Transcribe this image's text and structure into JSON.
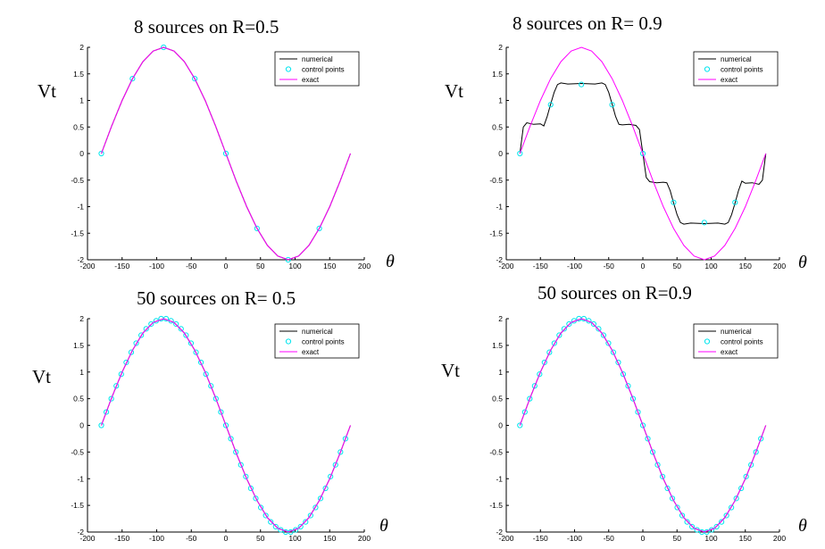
{
  "chart_data": [
    {
      "type": "line",
      "title": "8 sources on R=0.5",
      "ylabel": "Vt",
      "xlabel": "θ",
      "xlim": [
        -200,
        200
      ],
      "ylim": [
        -2,
        2
      ],
      "xticks": [
        "-200",
        "-150",
        "-100",
        "-50",
        "0",
        "50",
        "100",
        "150",
        "200"
      ],
      "yticks": [
        "2",
        "1.5",
        "1",
        "0.5",
        "0",
        "-0.5",
        "-1",
        "-1.5",
        "-2"
      ],
      "legend_position": "top-right",
      "legend": [
        "numerical",
        "control points",
        "exact"
      ],
      "series": [
        {
          "name": "numerical",
          "color": "#000000",
          "x": [
            -180,
            -165,
            -150,
            -135,
            -120,
            -105,
            -90,
            -75,
            -60,
            -45,
            -30,
            -15,
            0,
            15,
            30,
            45,
            60,
            75,
            90,
            105,
            120,
            135,
            150,
            165,
            180
          ],
          "y": [
            0,
            0.52,
            1.0,
            1.41,
            1.73,
            1.93,
            2.0,
            1.93,
            1.73,
            1.41,
            1.0,
            0.52,
            0,
            -0.52,
            -1.0,
            -1.41,
            -1.73,
            -1.93,
            -2.0,
            -1.93,
            -1.73,
            -1.41,
            -1.0,
            -0.52,
            0
          ]
        },
        {
          "name": "control points",
          "color": "#00e5ee",
          "x": [
            -180,
            -135,
            -90,
            -45,
            0,
            45,
            90,
            135
          ],
          "y": [
            0,
            1.41,
            2.0,
            1.41,
            0,
            -1.41,
            -2.0,
            -1.41
          ]
        },
        {
          "name": "exact",
          "color": "#ff00ff",
          "x": [
            -180,
            -165,
            -150,
            -135,
            -120,
            -105,
            -90,
            -75,
            -60,
            -45,
            -30,
            -15,
            0,
            15,
            30,
            45,
            60,
            75,
            90,
            105,
            120,
            135,
            150,
            165,
            180
          ],
          "y": [
            0,
            0.52,
            1.0,
            1.41,
            1.73,
            1.93,
            2.0,
            1.93,
            1.73,
            1.41,
            1.0,
            0.52,
            0,
            -0.52,
            -1.0,
            -1.41,
            -1.73,
            -1.93,
            -2.0,
            -1.93,
            -1.73,
            -1.41,
            -1.0,
            -0.52,
            0
          ]
        }
      ]
    },
    {
      "type": "line",
      "title": "8 sources on R= 0.9",
      "ylabel": "Vt",
      "xlabel": "θ",
      "xlim": [
        -200,
        200
      ],
      "ylim": [
        -2,
        2
      ],
      "xticks": [
        "-200",
        "-150",
        "-100",
        "-50",
        "0",
        "50",
        "100",
        "150",
        "200"
      ],
      "yticks": [
        "2",
        "1.5",
        "1",
        "0.5",
        "0",
        "-0.5",
        "-1",
        "-1.5",
        "-2"
      ],
      "legend_position": "top-right",
      "legend": [
        "numerical",
        "control points",
        "exact"
      ],
      "series": [
        {
          "name": "numerical",
          "color": "#000000",
          "x": [
            -180,
            -175,
            -170,
            -160,
            -150,
            -145,
            -140,
            -135,
            -130,
            -125,
            -120,
            -110,
            -90,
            -70,
            -60,
            -55,
            -50,
            -45,
            -40,
            -35,
            -30,
            -20,
            -10,
            -5,
            0,
            5,
            10,
            20,
            30,
            35,
            40,
            45,
            50,
            55,
            60,
            70,
            90,
            110,
            120,
            125,
            130,
            135,
            140,
            145,
            150,
            160,
            170,
            175,
            180
          ],
          "y": [
            0,
            0.5,
            0.58,
            0.55,
            0.56,
            0.52,
            0.7,
            0.93,
            1.15,
            1.3,
            1.33,
            1.31,
            1.32,
            1.31,
            1.33,
            1.3,
            1.15,
            0.93,
            0.7,
            0.55,
            0.54,
            0.55,
            0.53,
            0.45,
            0,
            -0.45,
            -0.53,
            -0.55,
            -0.54,
            -0.55,
            -0.7,
            -0.93,
            -1.15,
            -1.3,
            -1.33,
            -1.31,
            -1.32,
            -1.31,
            -1.33,
            -1.3,
            -1.15,
            -0.93,
            -0.7,
            -0.52,
            -0.56,
            -0.55,
            -0.58,
            -0.5,
            0
          ]
        },
        {
          "name": "control points",
          "color": "#00e5ee",
          "x": [
            -180,
            -135,
            -90,
            -45,
            0,
            45,
            90,
            135
          ],
          "y": [
            0,
            0.92,
            1.3,
            0.92,
            0,
            -0.92,
            -1.3,
            -0.92
          ]
        },
        {
          "name": "exact",
          "color": "#ff00ff",
          "x": [
            -180,
            -165,
            -150,
            -135,
            -120,
            -105,
            -90,
            -75,
            -60,
            -45,
            -30,
            -15,
            0,
            15,
            30,
            45,
            60,
            75,
            90,
            105,
            120,
            135,
            150,
            165,
            180
          ],
          "y": [
            0,
            0.52,
            1.0,
            1.41,
            1.73,
            1.93,
            2.0,
            1.93,
            1.73,
            1.41,
            1.0,
            0.52,
            0,
            -0.52,
            -1.0,
            -1.41,
            -1.73,
            -1.93,
            -2.0,
            -1.93,
            -1.73,
            -1.41,
            -1.0,
            -0.52,
            0
          ]
        }
      ]
    },
    {
      "type": "line",
      "title": "50 sources on R= 0.5",
      "ylabel": "Vt",
      "xlabel": "θ",
      "xlim": [
        -200,
        200
      ],
      "ylim": [
        -2,
        2
      ],
      "xticks": [
        "-200",
        "-150",
        "-100",
        "-50",
        "0",
        "50",
        "100",
        "150",
        "200"
      ],
      "yticks": [
        "2",
        "1.5",
        "1",
        "0.5",
        "0",
        "-0.5",
        "-1",
        "-1.5",
        "-2"
      ],
      "legend_position": "top-right",
      "legend": [
        "numerical",
        "control points",
        "exact"
      ],
      "series": [
        {
          "name": "numerical",
          "color": "#000000",
          "x": [
            -180,
            -165,
            -150,
            -135,
            -120,
            -105,
            -90,
            -75,
            -60,
            -45,
            -30,
            -15,
            0,
            15,
            30,
            45,
            60,
            75,
            90,
            105,
            120,
            135,
            150,
            165,
            180
          ],
          "y": [
            0,
            0.52,
            1.0,
            1.41,
            1.73,
            1.93,
            2.0,
            1.93,
            1.73,
            1.41,
            1.0,
            0.52,
            0,
            -0.52,
            -1.0,
            -1.41,
            -1.73,
            -1.93,
            -2.0,
            -1.93,
            -1.73,
            -1.41,
            -1.0,
            -0.52,
            0
          ]
        },
        {
          "name": "control points",
          "color": "#00e5ee",
          "x": [
            -180,
            -172.8,
            -165.6,
            -158.4,
            -151.2,
            -144,
            -136.8,
            -129.6,
            -122.4,
            -115.2,
            -108,
            -100.8,
            -93.6,
            -86.4,
            -79.2,
            -72,
            -64.8,
            -57.6,
            -50.4,
            -43.2,
            -36,
            -28.8,
            -21.6,
            -14.4,
            -7.2,
            0,
            7.2,
            14.4,
            21.6,
            28.8,
            36,
            43.2,
            50.4,
            57.6,
            64.8,
            72,
            79.2,
            86.4,
            93.6,
            100.8,
            108,
            115.2,
            122.4,
            129.6,
            136.8,
            144,
            151.2,
            158.4,
            165.6,
            172.8
          ],
          "y": [
            0,
            0.25,
            0.5,
            0.74,
            0.96,
            1.18,
            1.37,
            1.54,
            1.69,
            1.81,
            1.9,
            1.96,
            2.0,
            2.0,
            1.96,
            1.9,
            1.81,
            1.69,
            1.54,
            1.37,
            1.18,
            0.96,
            0.74,
            0.5,
            0.25,
            0,
            -0.25,
            -0.5,
            -0.74,
            -0.96,
            -1.18,
            -1.37,
            -1.54,
            -1.69,
            -1.81,
            -1.9,
            -1.96,
            -2.0,
            -2.0,
            -1.96,
            -1.9,
            -1.81,
            -1.69,
            -1.54,
            -1.37,
            -1.18,
            -0.96,
            -0.74,
            -0.5,
            -0.25
          ]
        },
        {
          "name": "exact",
          "color": "#ff00ff",
          "x": [
            -180,
            -165,
            -150,
            -135,
            -120,
            -105,
            -90,
            -75,
            -60,
            -45,
            -30,
            -15,
            0,
            15,
            30,
            45,
            60,
            75,
            90,
            105,
            120,
            135,
            150,
            165,
            180
          ],
          "y": [
            0,
            0.52,
            1.0,
            1.41,
            1.73,
            1.93,
            2.0,
            1.93,
            1.73,
            1.41,
            1.0,
            0.52,
            0,
            -0.52,
            -1.0,
            -1.41,
            -1.73,
            -1.93,
            -2.0,
            -1.93,
            -1.73,
            -1.41,
            -1.0,
            -0.52,
            0
          ]
        }
      ]
    },
    {
      "type": "line",
      "title": "50 sources on R=0.9",
      "ylabel": "Vt",
      "xlabel": "θ",
      "xlim": [
        -200,
        200
      ],
      "ylim": [
        -2,
        2
      ],
      "xticks": [
        "-200",
        "-150",
        "-100",
        "-50",
        "0",
        "50",
        "100",
        "150",
        "200"
      ],
      "yticks": [
        "2",
        "1.5",
        "1",
        "0.5",
        "0",
        "-0.5",
        "-1",
        "-1.5",
        "-2"
      ],
      "legend_position": "top-right",
      "legend": [
        "numerical",
        "control points",
        "exact"
      ],
      "series": [
        {
          "name": "numerical",
          "color": "#000000",
          "x": [
            -180,
            -165,
            -150,
            -135,
            -120,
            -105,
            -90,
            -75,
            -60,
            -45,
            -30,
            -15,
            0,
            15,
            30,
            45,
            60,
            75,
            90,
            105,
            120,
            135,
            150,
            165,
            180
          ],
          "y": [
            0,
            0.52,
            1.0,
            1.41,
            1.73,
            1.93,
            2.0,
            1.93,
            1.73,
            1.41,
            1.0,
            0.52,
            0,
            -0.52,
            -1.0,
            -1.41,
            -1.73,
            -1.93,
            -2.0,
            -1.93,
            -1.73,
            -1.41,
            -1.0,
            -0.52,
            0
          ]
        },
        {
          "name": "control points",
          "color": "#00e5ee",
          "x": [
            -180,
            -172.8,
            -165.6,
            -158.4,
            -151.2,
            -144,
            -136.8,
            -129.6,
            -122.4,
            -115.2,
            -108,
            -100.8,
            -93.6,
            -86.4,
            -79.2,
            -72,
            -64.8,
            -57.6,
            -50.4,
            -43.2,
            -36,
            -28.8,
            -21.6,
            -14.4,
            -7.2,
            0,
            7.2,
            14.4,
            21.6,
            28.8,
            36,
            43.2,
            50.4,
            57.6,
            64.8,
            72,
            79.2,
            86.4,
            93.6,
            100.8,
            108,
            115.2,
            122.4,
            129.6,
            136.8,
            144,
            151.2,
            158.4,
            165.6,
            172.8
          ],
          "y": [
            0,
            0.25,
            0.5,
            0.74,
            0.96,
            1.18,
            1.37,
            1.54,
            1.69,
            1.81,
            1.9,
            1.96,
            2.0,
            2.0,
            1.96,
            1.9,
            1.81,
            1.69,
            1.54,
            1.37,
            1.18,
            0.96,
            0.74,
            0.5,
            0.25,
            0,
            -0.25,
            -0.5,
            -0.74,
            -0.96,
            -1.18,
            -1.37,
            -1.54,
            -1.69,
            -1.81,
            -1.9,
            -1.96,
            -2.0,
            -2.0,
            -1.96,
            -1.9,
            -1.81,
            -1.69,
            -1.54,
            -1.37,
            -1.18,
            -0.96,
            -0.74,
            -0.5,
            -0.25
          ]
        },
        {
          "name": "exact",
          "color": "#ff00ff",
          "x": [
            -180,
            -165,
            -150,
            -135,
            -120,
            -105,
            -90,
            -75,
            -60,
            -45,
            -30,
            -15,
            0,
            15,
            30,
            45,
            60,
            75,
            90,
            105,
            120,
            135,
            150,
            165,
            180
          ],
          "y": [
            0,
            0.52,
            1.0,
            1.41,
            1.73,
            1.93,
            2.0,
            1.93,
            1.73,
            1.41,
            1.0,
            0.52,
            0,
            -0.52,
            -1.0,
            -1.41,
            -1.73,
            -1.93,
            -2.0,
            -1.93,
            -1.73,
            -1.41,
            -1.0,
            -0.52,
            0
          ]
        }
      ]
    }
  ]
}
